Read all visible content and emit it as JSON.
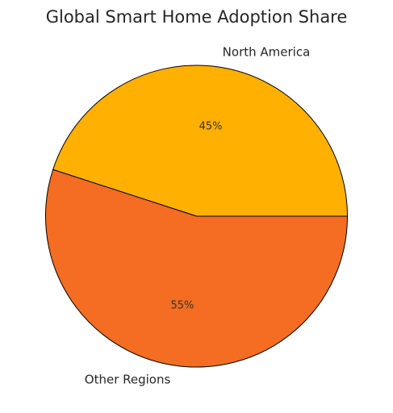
{
  "chart_data": {
    "type": "pie",
    "title": "Global Smart Home Adoption Share",
    "slices": [
      {
        "label": "North America",
        "value": 45,
        "pct_label": "45%",
        "color": "#FFB000"
      },
      {
        "label": "Other Regions",
        "value": 55,
        "pct_label": "55%",
        "color": "#F46D22"
      }
    ],
    "start_angle": "3 o'clock",
    "direction": "counterclockwise",
    "legend": "none"
  }
}
